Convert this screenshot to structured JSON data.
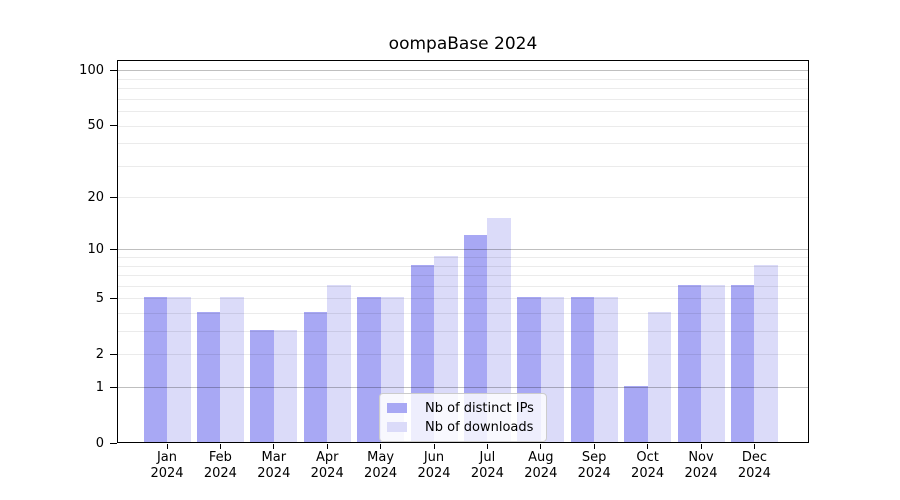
{
  "title": "oompaBase 2024",
  "chart_data": {
    "type": "bar",
    "title": "oompaBase 2024",
    "scale": "log1p",
    "grid": true,
    "legend_position": "bottom-center",
    "categories": [
      "Jan",
      "Feb",
      "Mar",
      "Apr",
      "May",
      "Jun",
      "Jul",
      "Aug",
      "Sep",
      "Oct",
      "Nov",
      "Dec"
    ],
    "x_tick_second_line": "2024",
    "series": [
      {
        "name": "Nb of distinct IPs",
        "color": "#a8a8f4",
        "values": [
          5,
          4,
          3,
          4,
          5,
          8,
          12,
          5,
          5,
          1,
          6,
          6
        ]
      },
      {
        "name": "Nb of downloads",
        "color": "#dbdbf9",
        "values": [
          5,
          5,
          3,
          6,
          5,
          9,
          15,
          5,
          5,
          4,
          6,
          8
        ]
      }
    ],
    "y_tick_values": [
      100,
      50,
      20,
      10,
      5,
      2,
      1,
      0
    ],
    "y_tick_labels": [
      "100",
      "50",
      "20",
      "10",
      "5",
      "2",
      "1",
      "0"
    ],
    "minor_gridlines": [
      2,
      3,
      4,
      5,
      6,
      7,
      8,
      9,
      20,
      30,
      40,
      50,
      60,
      70,
      80,
      90
    ],
    "major_gridlines": [
      1,
      10,
      100
    ],
    "ylim": [
      0,
      114
    ],
    "colors": {
      "minor_grid": "rgba(0,0,0,0.08)",
      "major_grid": "rgba(0,0,0,0.25)",
      "axis": "#000000"
    }
  }
}
